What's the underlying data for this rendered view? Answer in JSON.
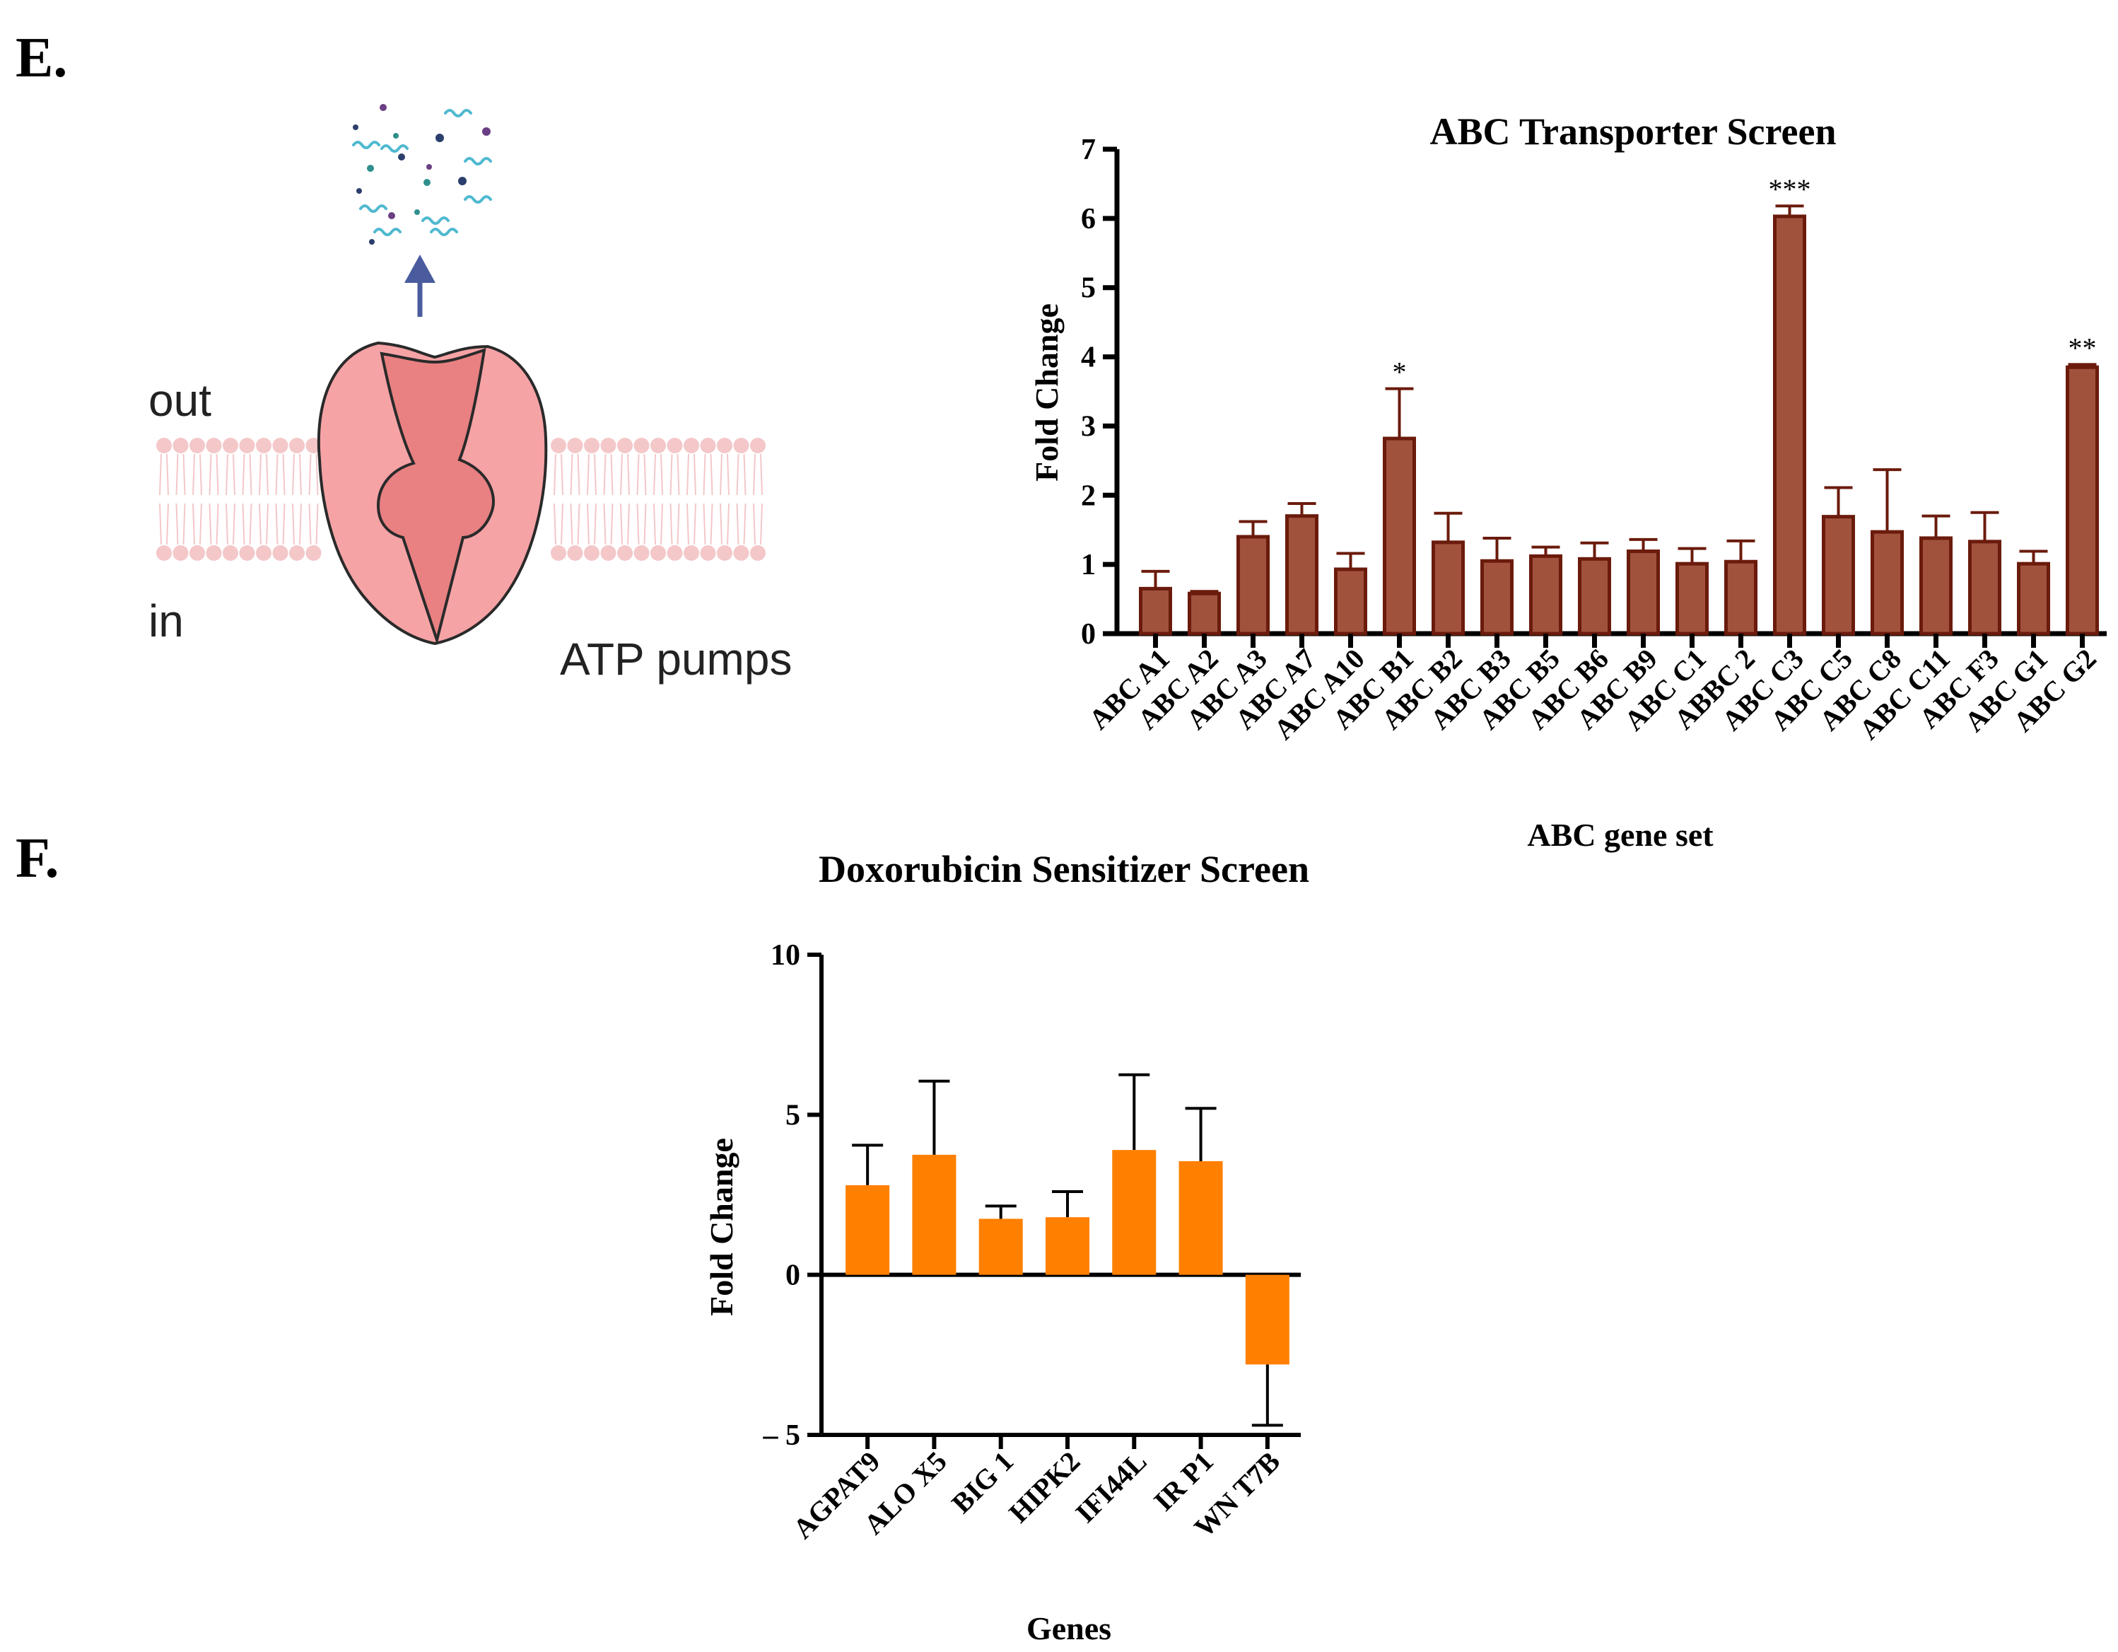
{
  "panel_labels": {
    "e": "E.",
    "f": "F."
  },
  "diagram": {
    "label_out": "out",
    "label_in": "in",
    "caption": "ATP pumps",
    "colors": {
      "pump_outer": "#f6a3a6",
      "pump_inner": "#e98082",
      "outline": "#2a2a2a",
      "membrane": "#f4c7c9",
      "arrow": "#4a5c9e",
      "molecule_cyan": "#4fb9d0",
      "molecule_purple": "#6b3f83",
      "molecule_navy": "#2b3f6c",
      "molecule_teal": "#2f8f8c"
    }
  },
  "chart_data": [
    {
      "type": "bar",
      "title": "ABC Transporter Screen",
      "xlabel": "ABC gene set",
      "ylabel": "Fold Change",
      "ylim": [
        0,
        7
      ],
      "yticks": [
        "0",
        "1",
        "2",
        "3",
        "4",
        "5",
        "6",
        "7"
      ],
      "bar_color": "#a0523d",
      "edge_color": "#6b1b0c",
      "categories": [
        "ABC A1",
        "ABC A2",
        "ABC A3",
        "ABC A7",
        "ABC A10",
        "ABC B1",
        "ABC B2",
        "ABC B3",
        "ABC B5",
        "ABC B6",
        "ABC B9",
        "ABC C1",
        "ABBC 2",
        "ABC C3",
        "ABC C5",
        "ABC C8",
        "ABC C11",
        "ABC F3",
        "ABC G1",
        "ABC G2"
      ],
      "values": [
        0.65,
        0.58,
        1.4,
        1.7,
        0.93,
        2.82,
        1.32,
        1.05,
        1.12,
        1.08,
        1.19,
        1.01,
        1.04,
        6.03,
        1.69,
        1.47,
        1.38,
        1.33,
        1.01,
        3.85
      ],
      "errors": [
        0.25,
        0.03,
        0.22,
        0.18,
        0.23,
        0.72,
        0.42,
        0.33,
        0.13,
        0.23,
        0.17,
        0.22,
        0.3,
        0.15,
        0.42,
        0.9,
        0.32,
        0.42,
        0.18,
        0.04
      ],
      "annotations": [
        "",
        "",
        "",
        "",
        "",
        "*",
        "",
        "",
        "",
        "",
        "",
        "",
        "",
        "***",
        "",
        "",
        "",
        "",
        "",
        "**"
      ]
    },
    {
      "type": "bar",
      "title": "Doxorubicin Sensitizer Screen",
      "xlabel": "Genes",
      "ylabel": "Fold Change",
      "ylim": [
        -5,
        10
      ],
      "yticks": [
        "– 5",
        "0",
        "5",
        "10"
      ],
      "bar_color": "#ff8000",
      "categories": [
        "AGPAT9",
        "ALO X5",
        "BIG 1",
        "HIPK2",
        "IFI44L",
        "IR P1",
        "WN T7B"
      ],
      "values": [
        2.8,
        3.75,
        1.75,
        1.8,
        3.9,
        3.55,
        -2.8
      ],
      "errors": [
        1.25,
        2.3,
        0.4,
        0.8,
        2.35,
        1.65,
        1.9
      ]
    }
  ]
}
